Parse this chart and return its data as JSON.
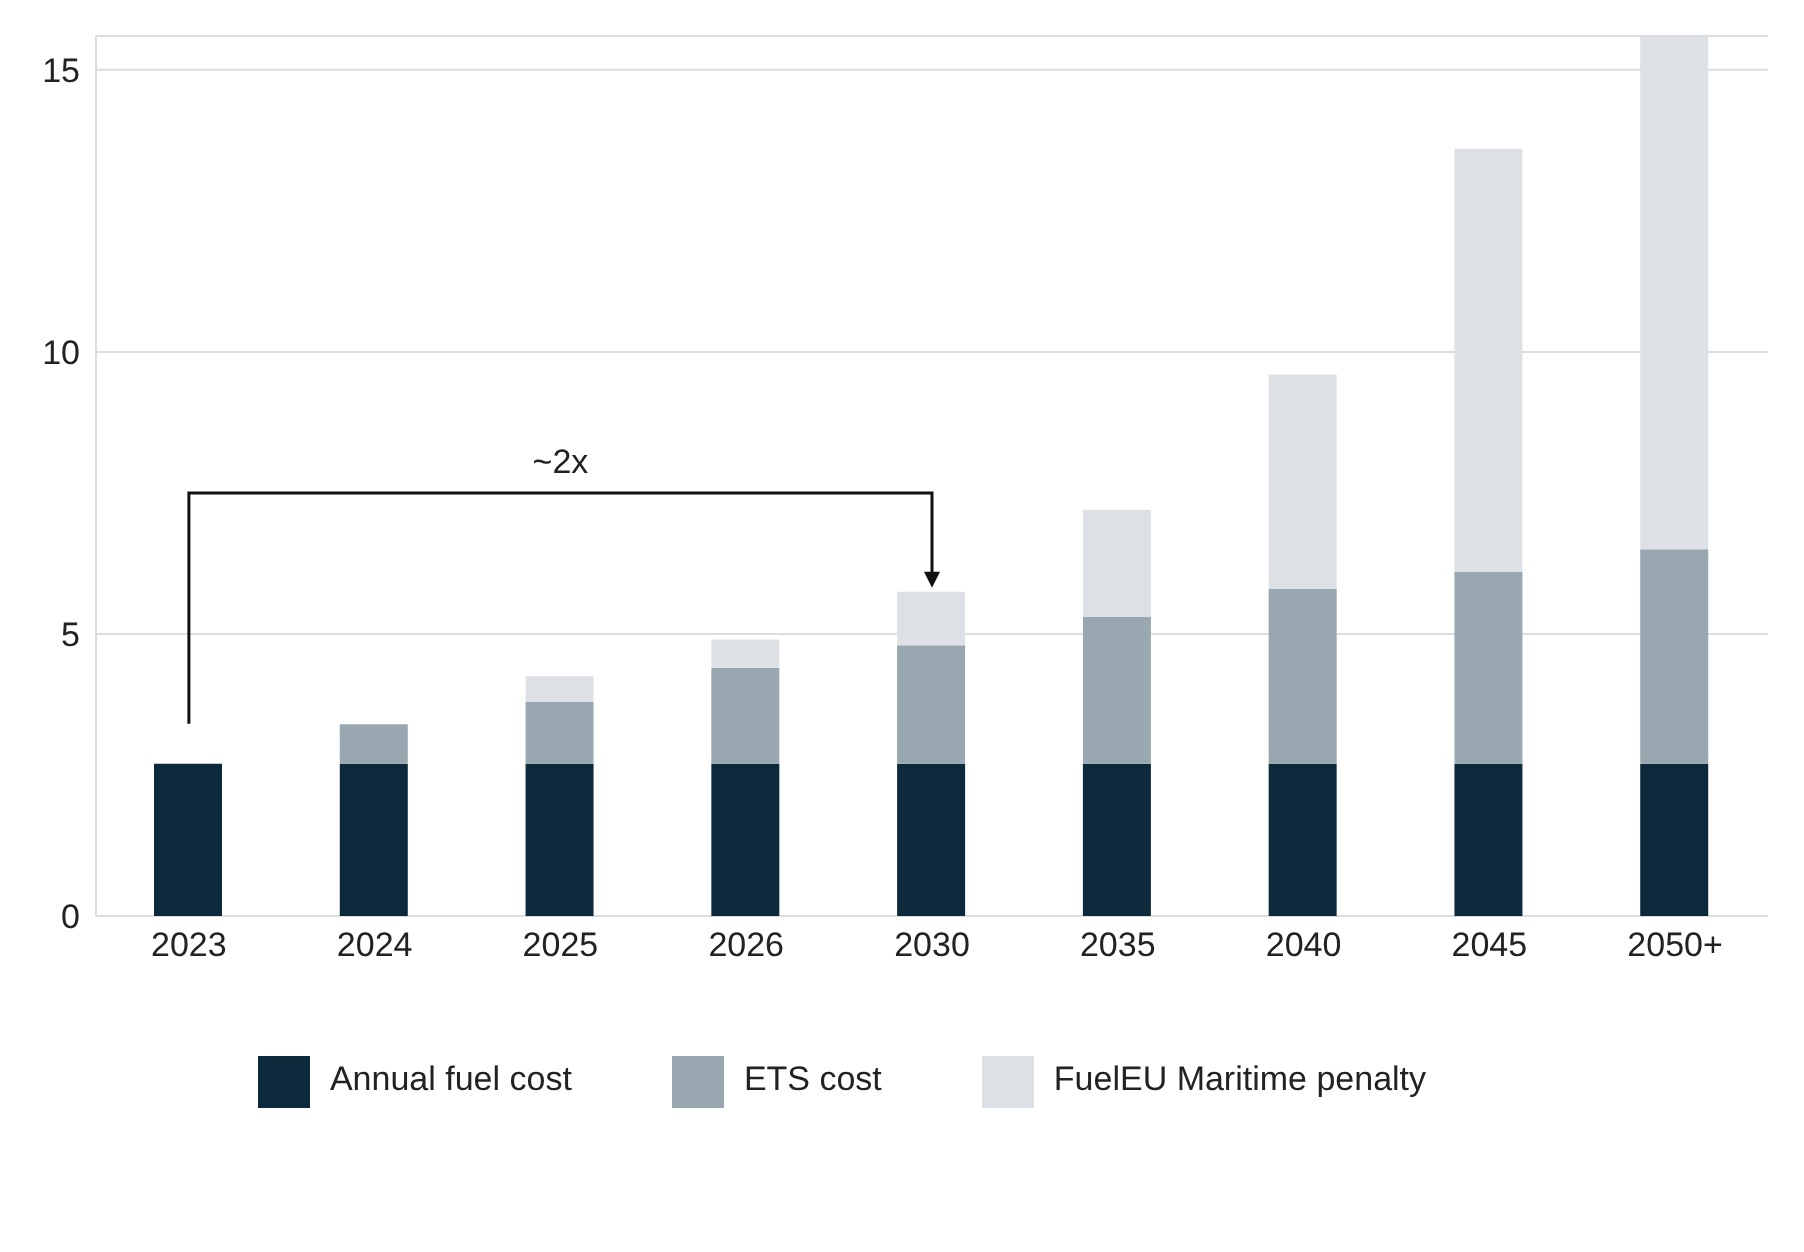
{
  "chart_data": {
    "type": "bar",
    "stacked": true,
    "categories": [
      "2023",
      "2024",
      "2025",
      "2026",
      "2030",
      "2035",
      "2040",
      "2045",
      "2050+"
    ],
    "series": [
      {
        "name": "Annual fuel cost",
        "color": "#0d2a3c",
        "values": [
          2.7,
          2.7,
          2.7,
          2.7,
          2.7,
          2.7,
          2.7,
          2.7,
          2.7
        ]
      },
      {
        "name": "ETS cost",
        "color": "#98a7b0",
        "values": [
          0,
          0.7,
          1.1,
          1.7,
          2.1,
          2.6,
          3.1,
          3.4,
          3.8
        ]
      },
      {
        "name": "FuelEU Maritime penalty",
        "color": "#dde1e5",
        "values": [
          0,
          0,
          0.45,
          0.5,
          0.95,
          1.9,
          3.8,
          7.5,
          9.1
        ]
      }
    ],
    "ylim": [
      0,
      15.6
    ],
    "yticks": [
      0,
      5,
      10,
      15
    ],
    "grid": "y",
    "legend": "bottom",
    "annotations": [
      "~2x"
    ]
  }
}
